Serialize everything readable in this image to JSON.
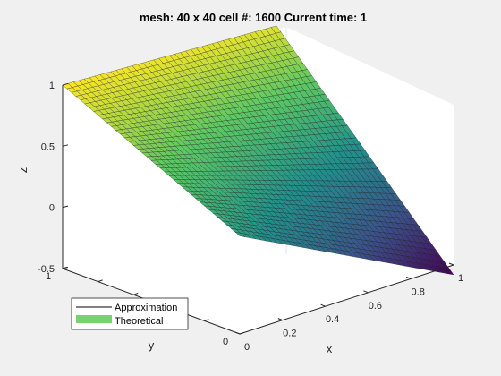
{
  "chart_data": {
    "type": "surface",
    "title": "mesh: 40 x 40 cell #: 1600 Current time: 1",
    "xlabel": "x",
    "ylabel": "y",
    "zlabel": "z",
    "xlim": [
      0,
      1
    ],
    "ylim": [
      0,
      1
    ],
    "zlim": [
      -0.5,
      1
    ],
    "x_ticks": [
      "0",
      "0.2",
      "0.4",
      "0.6",
      "0.8",
      "1"
    ],
    "y_ticks": [
      "0",
      "1"
    ],
    "z_ticks": [
      "-0.5",
      "0",
      "0.5",
      "1"
    ],
    "mesh": {
      "nx": 40,
      "ny": 40,
      "cells": 1600
    },
    "current_time": 1,
    "surface_corners_z": {
      "x0_y0": 0.3,
      "x1_y0": -0.58,
      "x0_y1": 1.0,
      "x1_y1": 0.92
    },
    "colormap": [
      "#440154",
      "#3b528b",
      "#21918c",
      "#5ec962",
      "#fde725"
    ],
    "grid": false,
    "legend": {
      "placement": "bottom-left",
      "entries": [
        {
          "label": "Approximation",
          "color": "#000000",
          "style": "line"
        },
        {
          "label": "Theoretical",
          "color": "#77d36f",
          "style": "patch"
        }
      ]
    }
  }
}
